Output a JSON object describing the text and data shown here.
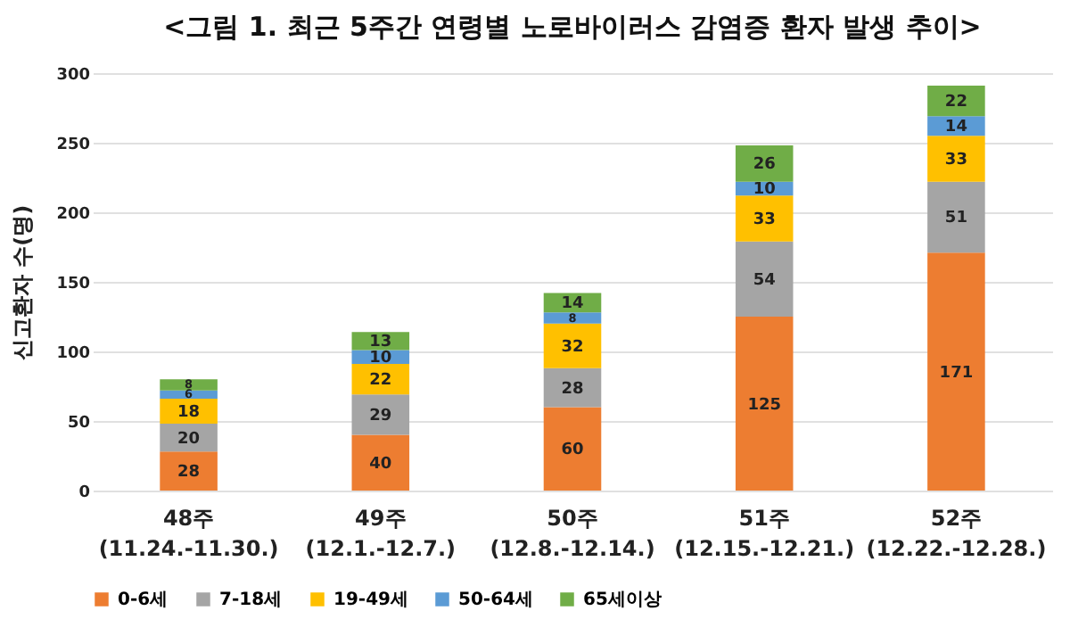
{
  "chart_data": {
    "type": "bar",
    "title": "<그림 1. 최근 5주간 연령별 노로바이러스 감염증 환자 발생 추이>",
    "ylabel": "신고환자 수(명)",
    "categories": [
      "48주\n(11.24.-11.30.)",
      "49주\n(12.1.-12.7.)",
      "50주\n(12.8.-12.14.)",
      "51주\n(12.15.-12.21.)",
      "52주\n(12.22.-12.28.)"
    ],
    "stacked": true,
    "ylim": [
      0,
      300
    ],
    "yticks": [
      0,
      50,
      100,
      150,
      200,
      250,
      300
    ],
    "grid": "y",
    "legend": "bottom",
    "data_labels": true,
    "series": [
      {
        "name": "0-6세",
        "color": "#ed7d31",
        "values": [
          28,
          40,
          60,
          125,
          171
        ]
      },
      {
        "name": "7-18세",
        "color": "#a5a5a5",
        "values": [
          20,
          29,
          28,
          54,
          51
        ]
      },
      {
        "name": "19-49세",
        "color": "#ffc000",
        "values": [
          18,
          22,
          32,
          33,
          33
        ]
      },
      {
        "name": "50-64세",
        "color": "#5b9bd5",
        "values": [
          6,
          10,
          8,
          10,
          14
        ]
      },
      {
        "name": "65세이상",
        "color": "#70ad47",
        "values": [
          8,
          13,
          14,
          26,
          22
        ]
      }
    ]
  }
}
